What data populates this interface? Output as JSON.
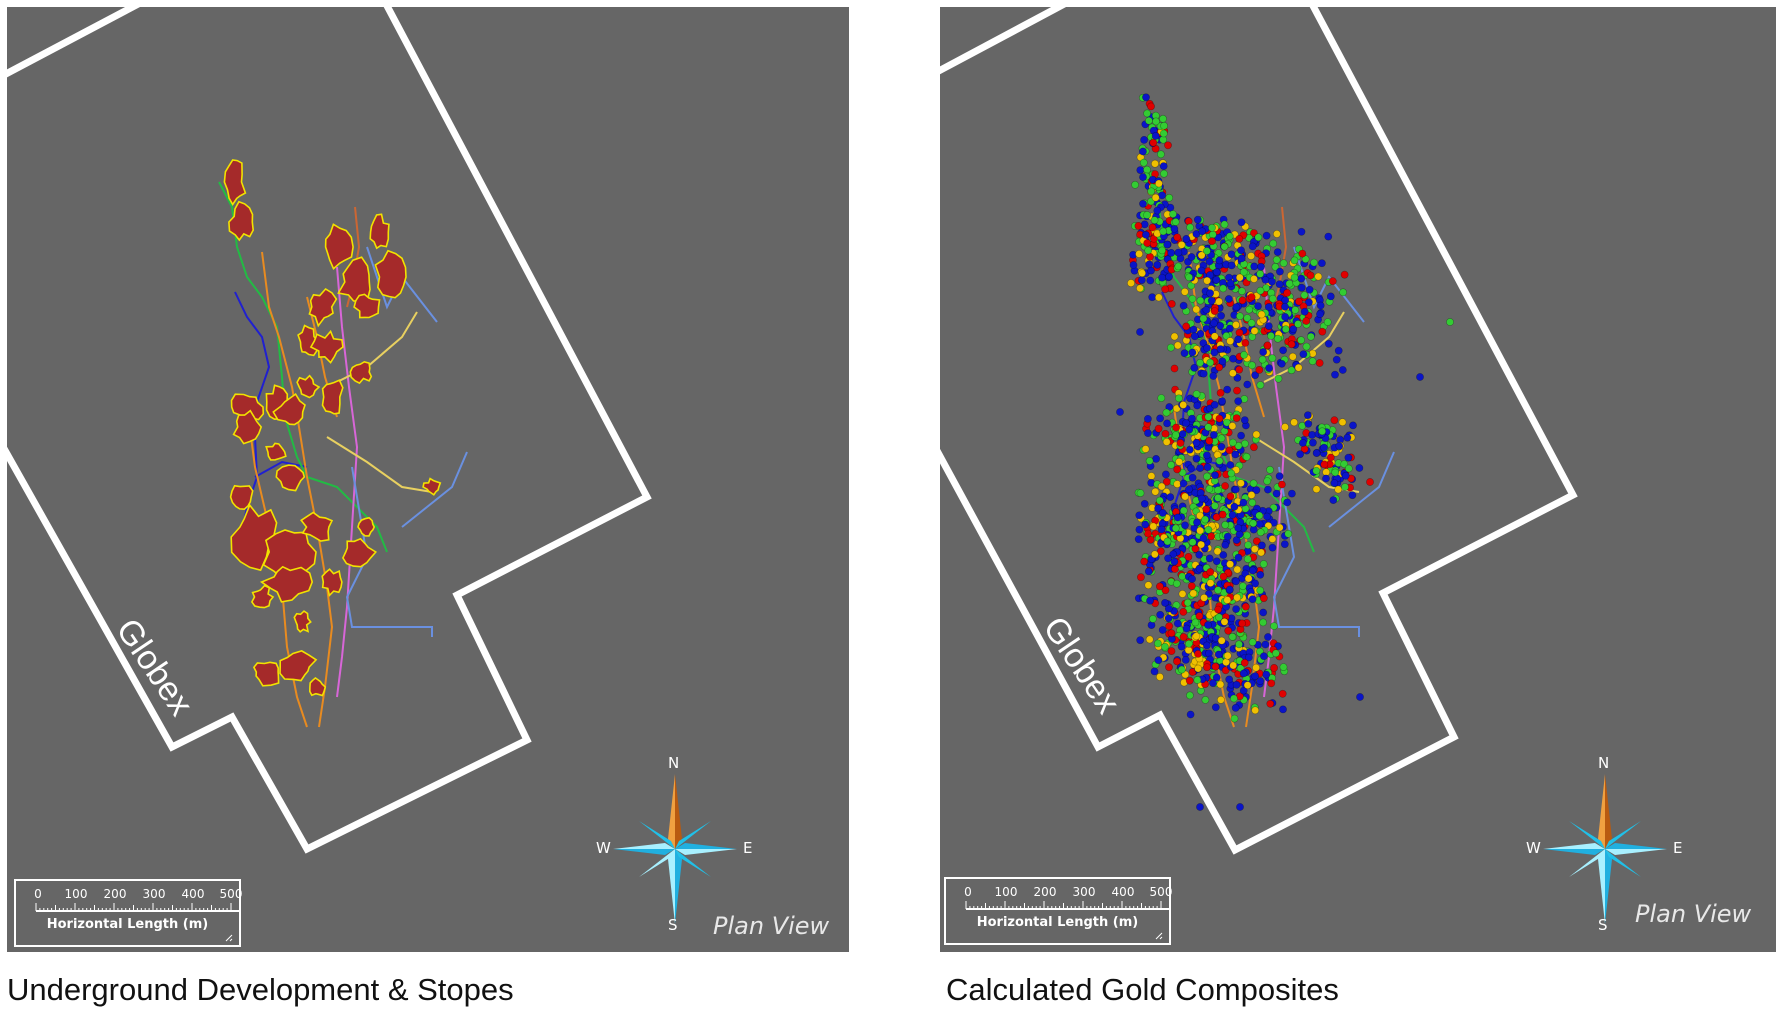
{
  "panels": [
    {
      "caption": "Underground Development & Stopes",
      "lease_label": "Globex",
      "view_label": "Plan View",
      "layer": "stopes"
    },
    {
      "caption": "Calculated Gold Composites",
      "lease_label": "Globex",
      "view_label": "Plan View",
      "layer": "composites"
    }
  ],
  "scale_bar": {
    "ticks": [
      "0",
      "100",
      "200",
      "300",
      "400",
      "500"
    ],
    "title": "Horizontal Length (m)"
  },
  "compass": {
    "north": "N",
    "south": "S",
    "east": "E",
    "west": "W"
  },
  "colors": {
    "background": "#666666",
    "boundary": "#ffffff",
    "stope_fill": "#a52a2a",
    "stope_outline": "#f2e200",
    "composite_high": "#e00000",
    "composite_mid": "#f0c000",
    "composite_low": "#33cc33",
    "composite_lowest": "#0a14c8"
  }
}
